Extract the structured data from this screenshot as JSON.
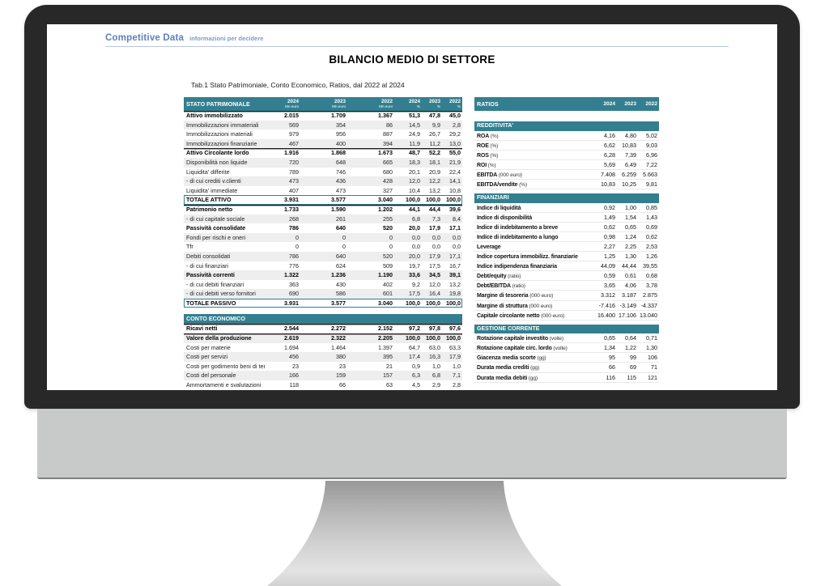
{
  "brand": {
    "name": "Competitive Data",
    "tagline": "informazioni per decidere"
  },
  "title": "BILANCIO MEDIO DI SETTORE",
  "subtitle": "Tab.1 Stato Patrimoniale, Conto Economico, Ratios, dal 2022 al 2024",
  "colors": {
    "accent_teal": "#337f8f",
    "brand_blue": "#5d81bd"
  },
  "balance_table": {
    "title": "STATO PATRIMONIALE",
    "col_headers": [
      {
        "year": "2024",
        "unit": "Mn euro"
      },
      {
        "year": "2023",
        "unit": "Mn euro"
      },
      {
        "year": "2022",
        "unit": "Mn euro"
      },
      {
        "year": "2024",
        "unit": "%"
      },
      {
        "year": "2023",
        "unit": "%"
      },
      {
        "year": "2022",
        "unit": "%"
      }
    ],
    "rows": [
      {
        "label": "Attivo immobilizzato",
        "values": [
          "2.015",
          "1.709",
          "1.367",
          "51,3",
          "47,8",
          "45,0"
        ],
        "b": true,
        "s": true
      },
      {
        "label": "Immobilizzazioni immateriali",
        "values": [
          "569",
          "354",
          "86",
          "14,5",
          "9,9",
          "2,8"
        ]
      },
      {
        "label": "Immobilizzazioni materiali",
        "values": [
          "979",
          "956",
          "887",
          "24,9",
          "26,7",
          "29,2"
        ]
      },
      {
        "label": "Immobilizzazioni finanziarie",
        "values": [
          "467",
          "400",
          "394",
          "11,9",
          "11,2",
          "13,0"
        ]
      },
      {
        "label": "Attivo Circolante  lordo",
        "values": [
          "1.916",
          "1.868",
          "1.673",
          "48,7",
          "52,2",
          "55,0"
        ],
        "b": true,
        "s": true
      },
      {
        "label": "Disponibilità non liquide",
        "values": [
          "720",
          "648",
          "665",
          "18,3",
          "18,1",
          "21,9"
        ]
      },
      {
        "label": "Liquidita'  differite",
        "values": [
          "789",
          "746",
          "680",
          "20,1",
          "20,9",
          "22,4"
        ]
      },
      {
        "label": " - di cui crediti v.clienti",
        "values": [
          "473",
          "436",
          "428",
          "12,0",
          "12,2",
          "14,1"
        ]
      },
      {
        "label": "Liquidita'  immediate",
        "values": [
          "407",
          "473",
          "327",
          "10,4",
          "13,2",
          "10,8"
        ]
      },
      {
        "label": "TOTALE ATTIVO",
        "values": [
          "3.931",
          "3.577",
          "3.040",
          "100,0",
          "100,0",
          "100,0"
        ],
        "t": true
      },
      {
        "label": "Patrimonio netto",
        "values": [
          "1.733",
          "1.590",
          "1.202",
          "44,1",
          "44,4",
          "39,6"
        ],
        "b": true,
        "s": true
      },
      {
        "label": " - di cui capitale sociale",
        "values": [
          "268",
          "261",
          "255",
          "6,8",
          "7,3",
          "8,4"
        ]
      },
      {
        "label": "Passività consolidate",
        "values": [
          "786",
          "640",
          "520",
          "20,0",
          "17,9",
          "17,1"
        ],
        "b": true
      },
      {
        "label": "Fondi per rischi e oneri",
        "values": [
          "0",
          "0",
          "0",
          "0,0",
          "0,0",
          "0,0"
        ]
      },
      {
        "label": "Tfr",
        "values": [
          "0",
          "0",
          "0",
          "0,0",
          "0,0",
          "0,0"
        ]
      },
      {
        "label": "Debiti consolidati",
        "values": [
          "786",
          "640",
          "520",
          "20,0",
          "17,9",
          "17,1"
        ]
      },
      {
        "label": "- di cui finanziari",
        "values": [
          "776",
          "624",
          "509",
          "19,7",
          "17,5",
          "16,7"
        ]
      },
      {
        "label": "Passività correnti",
        "values": [
          "1.322",
          "1.236",
          "1.190",
          "33,6",
          "34,5",
          "39,1"
        ],
        "b": true
      },
      {
        "label": "- di cui debiti finanziari",
        "values": [
          "363",
          "430",
          "402",
          "9,2",
          "12,0",
          "13,2"
        ]
      },
      {
        "label": "- di cui debiti verso fornitori",
        "values": [
          "690",
          "586",
          "601",
          "17,5",
          "16,4",
          "19,8"
        ]
      },
      {
        "label": "TOTALE PASSIVO",
        "values": [
          "3.931",
          "3.577",
          "3.040",
          "100,0",
          "100,0",
          "100,0"
        ],
        "t": true
      }
    ]
  },
  "income_table": {
    "title": "CONTO ECONOMICO",
    "rows": [
      {
        "label": "Ricavi netti",
        "values": [
          "2.544",
          "2.272",
          "2.152",
          "97,2",
          "97,8",
          "97,6"
        ],
        "b": true,
        "s": true
      },
      {
        "label": "Valore della produzione",
        "values": [
          "2.619",
          "2.322",
          "2.205",
          "100,0",
          "100,0",
          "100,0"
        ],
        "b": true,
        "s": true
      },
      {
        "label": "Costi per materie",
        "values": [
          "1.694",
          "1.464",
          "1.397",
          "64,7",
          "63,0",
          "63,3"
        ]
      },
      {
        "label": "Costi per servizi",
        "values": [
          "456",
          "380",
          "395",
          "17,4",
          "16,3",
          "17,9"
        ]
      },
      {
        "label": "Costi per godimento beni di terzi",
        "values": [
          "23",
          "23",
          "21",
          "0,9",
          "1,0",
          "1,0"
        ]
      },
      {
        "label": "Costi del personale",
        "values": [
          "166",
          "159",
          "157",
          "6,3",
          "6,8",
          "7,1"
        ]
      },
      {
        "label": "Ammortamenti e svalutazioni",
        "values": [
          "118",
          "66",
          "63",
          "4,5",
          "2,9",
          "2,8"
        ]
      }
    ]
  },
  "ratios": {
    "title": "RATIOS",
    "years": [
      "2024",
      "2023",
      "2022"
    ],
    "sections": [
      {
        "title": "REDDITIVITA'",
        "rows": [
          {
            "label": "ROA",
            "unit": "(%)",
            "values": [
              "4,16",
              "4,80",
              "5,02"
            ]
          },
          {
            "label": "ROE",
            "unit": "(%)",
            "values": [
              "6,62",
              "10,83",
              "9,03"
            ]
          },
          {
            "label": "ROS",
            "unit": "(%)",
            "values": [
              "6,28",
              "7,39",
              "6,96"
            ]
          },
          {
            "label": "ROI",
            "unit": "(%)",
            "values": [
              "5,69",
              "6,49",
              "7,22"
            ]
          },
          {
            "label": "EBITDA",
            "unit": "(000 euro)",
            "values": [
              "7.408",
              "6.259",
              "5.663"
            ]
          },
          {
            "label": "EBITDA/vendite",
            "unit": "(%)",
            "values": [
              "10,83",
              "10,25",
              "9,81"
            ]
          }
        ]
      },
      {
        "title": "FINANZIARI",
        "rows": [
          {
            "label": "Indice di liquidità",
            "unit": "",
            "values": [
              "0,92",
              "1,00",
              "0,85"
            ]
          },
          {
            "label": "Indice di disponibilità",
            "unit": "",
            "values": [
              "1,49",
              "1,54",
              "1,43"
            ]
          },
          {
            "label": "Indice di indebitamento a breve",
            "unit": "",
            "values": [
              "0,62",
              "0,65",
              "0,69"
            ]
          },
          {
            "label": "Indice di indebitamento a lungo",
            "unit": "",
            "values": [
              "0,98",
              "1,24",
              "0,62"
            ]
          },
          {
            "label": "Leverage",
            "unit": "",
            "values": [
              "2,27",
              "2,25",
              "2,53"
            ]
          },
          {
            "label": "Indice copertura immobilizz. finanziarie",
            "unit": "",
            "values": [
              "1,25",
              "1,30",
              "1,26"
            ]
          },
          {
            "label": "Indice indipendenza finanziaria",
            "unit": "",
            "values": [
              "44,09",
              "44,44",
              "39,55"
            ]
          },
          {
            "label": "Debt/equity",
            "unit": "(ratio)",
            "values": [
              "0,59",
              "0,61",
              "0,68"
            ]
          },
          {
            "label": "Debt/EBITDA",
            "unit": "(ratio)",
            "values": [
              "3,65",
              "4,06",
              "3,78"
            ]
          },
          {
            "label": "Margine di tesoreria",
            "unit": "(000 euro)",
            "values": [
              "3.312",
              "3.187",
              "2.875"
            ]
          },
          {
            "label": "Margine di struttura",
            "unit": "(000 euro)",
            "values": [
              "-7.416",
              "-3.149",
              "-4.337"
            ]
          },
          {
            "label": "Capitale circolante netto",
            "unit": "(000 euro)",
            "values": [
              "16.400",
              "17.106",
              "13.040"
            ]
          }
        ]
      },
      {
        "title": "GESTIONE CORRENTE",
        "rows": [
          {
            "label": "Rotazione capitale investito",
            "unit": "(volte)",
            "values": [
              "0,65",
              "0,64",
              "0,71"
            ]
          },
          {
            "label": "Rotazione capitale circ. lordo",
            "unit": "(volte)",
            "values": [
              "1,34",
              "1,22",
              "1,30"
            ]
          },
          {
            "label": "Giacenza media scorte",
            "unit": "(gg)",
            "values": [
              "95",
              "99",
              "106"
            ]
          },
          {
            "label": "Durata media crediti",
            "unit": "(gg)",
            "values": [
              "66",
              "69",
              "71"
            ]
          },
          {
            "label": "Durata media debiti",
            "unit": "(gg)",
            "values": [
              "116",
              "115",
              "121"
            ]
          }
        ]
      }
    ]
  }
}
